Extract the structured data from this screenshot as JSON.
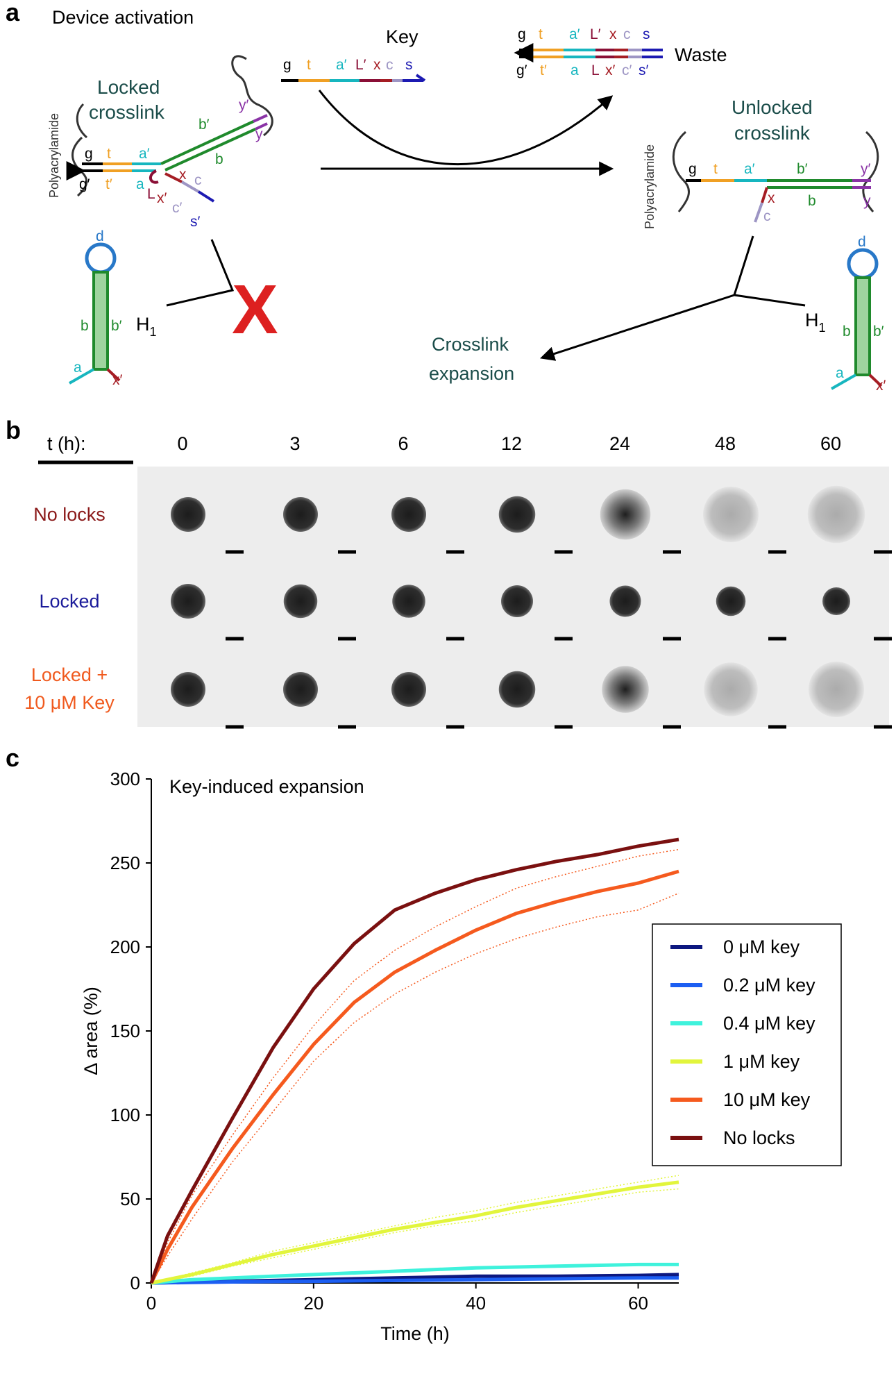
{
  "colors": {
    "black": "#000000",
    "orange_t": "#f0a024",
    "cyan_a": "#17b6bf",
    "darkred_L": "#8a0f36",
    "red_x": "#a51d24",
    "lavender_c": "#9d95c4",
    "blue_s": "#1c1ab2",
    "green_b": "#1f8a2c",
    "purple_y": "#8a33a6",
    "loop_d": "#2878c8",
    "teal_text": "#1b4d4a",
    "cross_red": "#dd2020",
    "no_locks_label": "#8a1818",
    "locked_label": "#1a1a9a",
    "locked_key_label": "#f05a1e"
  },
  "panel_a": {
    "panel_letter": "a",
    "title": "Device activation",
    "locked_crosslink": [
      "Locked",
      "crosslink"
    ],
    "unlocked_crosslink": [
      "Unlocked",
      "crosslink"
    ],
    "polyacrylamide": "Polyacrylamide",
    "key_title": "Key",
    "waste_title": "Waste",
    "crosslink_expansion": [
      "Crosslink",
      "expansion"
    ],
    "h1": "H",
    "h1_sub": "1",
    "x_mark": "X",
    "strand_labels": {
      "g": "g",
      "t": "t",
      "a_prime": "a′",
      "L_prime": "L′",
      "x": "x",
      "c": "c",
      "s": "s",
      "g_prime": "g′",
      "t_prime": "t′",
      "a": "a",
      "L": "L",
      "x_prime": "x′",
      "c_prime": "c′",
      "s_prime": "s′",
      "b": "b",
      "b_prime": "b′",
      "y": "y",
      "y_prime": "y′",
      "d": "d"
    }
  },
  "panel_b": {
    "panel_letter": "b",
    "time_header": "t (h):",
    "times": [
      "0",
      "3",
      "6",
      "12",
      "24",
      "48",
      "60"
    ],
    "rows": [
      {
        "label": [
          "No locks"
        ],
        "diameters_rel": [
          1.0,
          1.0,
          1.0,
          1.05,
          1.45,
          1.6,
          1.65
        ],
        "core_rel": [
          1.0,
          1.0,
          1.0,
          1.0,
          0.35,
          0.0,
          0.0
        ],
        "darkness": [
          0.95,
          0.95,
          0.95,
          0.95,
          0.55,
          0.4,
          0.35
        ]
      },
      {
        "label": [
          "Locked"
        ],
        "diameters_rel": [
          1.0,
          0.97,
          0.95,
          0.92,
          0.9,
          0.85,
          0.8
        ],
        "core_rel": [
          1.0,
          1.0,
          1.0,
          1.0,
          1.0,
          1.0,
          1.0
        ],
        "darkness": [
          0.85,
          0.85,
          0.85,
          0.85,
          0.85,
          0.85,
          0.85
        ]
      },
      {
        "label": [
          "Locked +",
          "10 μM Key"
        ],
        "diameters_rel": [
          1.0,
          1.0,
          1.0,
          1.05,
          1.35,
          1.55,
          1.6
        ],
        "core_rel": [
          1.0,
          1.0,
          1.0,
          0.9,
          0.4,
          0.0,
          0.0
        ],
        "darkness": [
          0.95,
          0.95,
          0.95,
          0.95,
          0.7,
          0.35,
          0.3
        ]
      }
    ]
  },
  "panel_c": {
    "panel_letter": "c"
  },
  "chart_data": {
    "type": "line",
    "title": "Key-induced expansion",
    "xlabel": "Time (h)",
    "ylabel": "Δ area (%)",
    "xlim": [
      0,
      65
    ],
    "ylim": [
      0,
      300
    ],
    "xticks": [
      0,
      20,
      40,
      60
    ],
    "yticks": [
      0,
      50,
      100,
      150,
      200,
      250,
      300
    ],
    "legend_position": "right",
    "series": [
      {
        "name": "0 μM key",
        "color": "#0d1880",
        "x": [
          0,
          5,
          10,
          20,
          30,
          40,
          50,
          60,
          65
        ],
        "y": [
          0,
          0.5,
          1,
          2,
          3,
          4,
          4,
          4.5,
          5
        ]
      },
      {
        "name": "0.2 μM key",
        "color": "#1c5ef2",
        "x": [
          0,
          5,
          10,
          20,
          30,
          40,
          50,
          60,
          65
        ],
        "y": [
          0,
          0.3,
          0.6,
          1,
          1.5,
          2,
          2.5,
          3,
          3
        ]
      },
      {
        "name": "0.4 μM key",
        "color": "#3ff2dc",
        "x": [
          0,
          5,
          10,
          20,
          30,
          40,
          50,
          60,
          65
        ],
        "y": [
          0,
          2,
          3,
          5,
          7,
          9,
          10,
          11,
          11
        ]
      },
      {
        "name": "1 μM key",
        "color": "#e2f53c",
        "x": [
          0,
          5,
          10,
          15,
          20,
          25,
          30,
          35,
          40,
          45,
          50,
          55,
          60,
          65
        ],
        "y": [
          0,
          5,
          11,
          17,
          22,
          27,
          32,
          36,
          40,
          45,
          49,
          53,
          57,
          60
        ]
      },
      {
        "name": "10 μM key",
        "color": "#f55a1e",
        "x": [
          0,
          2,
          5,
          10,
          15,
          20,
          25,
          30,
          35,
          40,
          45,
          50,
          55,
          60,
          65
        ],
        "y": [
          0,
          20,
          45,
          80,
          112,
          142,
          167,
          185,
          198,
          210,
          220,
          227,
          233,
          238,
          245
        ]
      },
      {
        "name": "No locks",
        "color": "#7a1010",
        "x": [
          0,
          2,
          5,
          10,
          15,
          20,
          25,
          30,
          35,
          40,
          45,
          50,
          55,
          60,
          65
        ],
        "y": [
          0,
          28,
          55,
          98,
          140,
          175,
          202,
          222,
          232,
          240,
          246,
          251,
          255,
          260,
          264
        ]
      }
    ],
    "error_bands": [
      {
        "name": "10 μM key",
        "color": "#f55a1e",
        "x": [
          0,
          2,
          5,
          10,
          15,
          20,
          25,
          30,
          35,
          40,
          45,
          50,
          55,
          60,
          65
        ],
        "upper": [
          0,
          24,
          52,
          88,
          122,
          153,
          180,
          198,
          212,
          224,
          235,
          242,
          248,
          254,
          258
        ],
        "lower": [
          0,
          16,
          38,
          72,
          102,
          132,
          155,
          172,
          185,
          196,
          205,
          212,
          218,
          222,
          232
        ]
      },
      {
        "name": "1 μM key",
        "color": "#e2f53c",
        "x": [
          0,
          5,
          10,
          15,
          20,
          25,
          30,
          35,
          40,
          45,
          50,
          55,
          60,
          65
        ],
        "upper": [
          0,
          6,
          12,
          19,
          24,
          29,
          34,
          39,
          43,
          48,
          52,
          56,
          60,
          64
        ],
        "lower": [
          0,
          4,
          10,
          15,
          20,
          25,
          30,
          34,
          37,
          42,
          46,
          50,
          54,
          56
        ]
      }
    ]
  }
}
